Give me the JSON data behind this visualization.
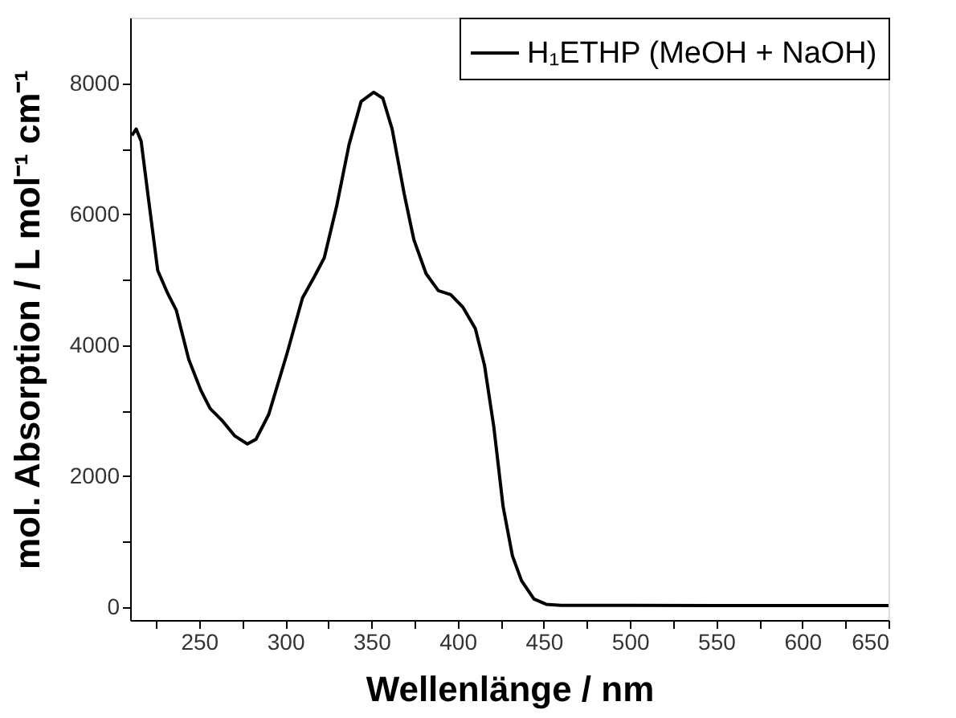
{
  "chart_data": {
    "type": "line",
    "xlabel": "Wellenlänge / nm",
    "ylabel": "mol. Absorption / L mol⁻¹ cm⁻¹",
    "xlim": [
      210,
      650
    ],
    "ylim": [
      -200,
      9000
    ],
    "xticks": [
      {
        "value": 225,
        "label": null
      },
      250,
      {
        "value": 275,
        "label": null
      },
      300,
      {
        "value": 325,
        "label": null
      },
      350,
      {
        "value": 375,
        "label": null
      },
      400,
      {
        "value": 425,
        "label": null
      },
      450,
      {
        "value": 475,
        "label": null
      },
      500,
      {
        "value": 525,
        "label": null
      },
      550,
      {
        "value": 575,
        "label": null
      },
      600,
      {
        "value": 625,
        "label": null
      },
      650
    ],
    "yticks": [
      0,
      {
        "value": 1000,
        "label": null
      },
      2000,
      {
        "value": 3000,
        "label": null
      },
      4000,
      {
        "value": 5000,
        "label": null
      },
      6000,
      {
        "value": 7000,
        "label": null
      },
      8000
    ],
    "grid": false,
    "legend": "top right",
    "line_style": "solid",
    "marker": "none",
    "series": [
      {
        "name": "H₁ETHP (MeOH + NaOH)",
        "color": "#000000",
        "x": [
          211,
          213.5,
          216.4,
          220.7,
          226,
          231.4,
          236.8,
          244,
          251,
          256.4,
          263.6,
          270.8,
          278,
          283,
          290.4,
          301,
          310,
          317,
          322.6,
          329.8,
          337,
          344,
          351.3,
          356.6,
          362,
          369,
          374.6,
          381.7,
          388.8,
          396,
          403,
          410.3,
          415.6,
          421,
          426.4,
          431.8,
          437.1,
          444.3,
          451.4,
          460,
          500,
          550,
          600,
          650
        ],
        "values": [
          7200,
          7300,
          7110,
          6220,
          5140,
          4810,
          4530,
          3780,
          3310,
          3030,
          2840,
          2610,
          2490,
          2560,
          2940,
          3870,
          4720,
          5050,
          5330,
          6120,
          7060,
          7720,
          7860,
          7770,
          7300,
          6310,
          5610,
          5090,
          4830,
          4770,
          4580,
          4250,
          3690,
          2750,
          1530,
          780,
          400,
          120,
          40,
          25,
          25,
          20,
          20,
          20
        ]
      }
    ]
  }
}
